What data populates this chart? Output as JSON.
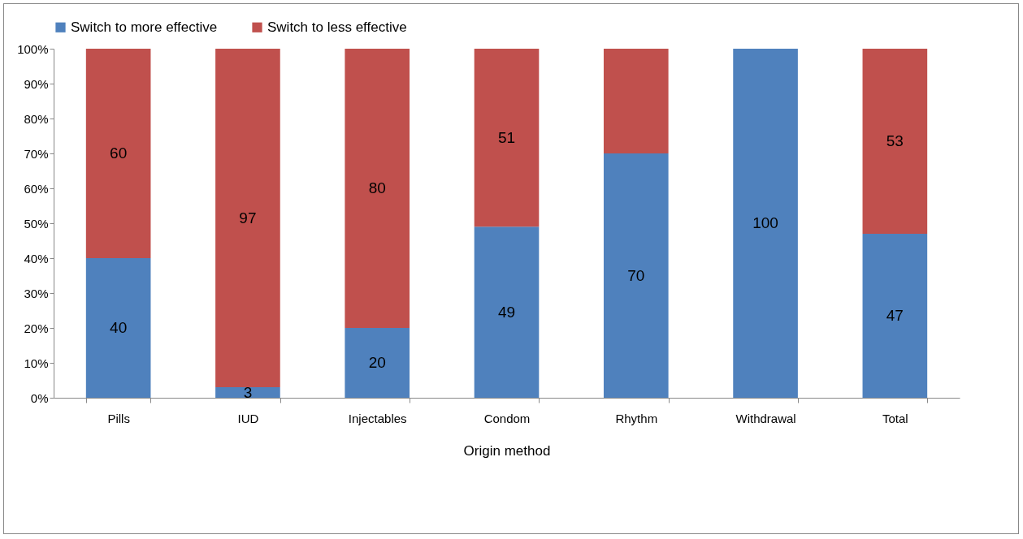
{
  "chart_data": {
    "type": "bar",
    "stacked": true,
    "xlabel": "Origin method",
    "categories": [
      "Pills",
      "IUD",
      "Injectables",
      "Condom",
      "Rhythm",
      "Withdrawal",
      "Total"
    ],
    "series": [
      {
        "name": "Switch to more effective",
        "color": "#4f81bd",
        "values": [
          40,
          3,
          20,
          49,
          70,
          100,
          47
        ],
        "value_labels": [
          "40",
          "3",
          "20",
          "49",
          "70",
          "100",
          "47"
        ]
      },
      {
        "name": "Switch to less effective",
        "color": "#c0504d",
        "values": [
          60,
          97,
          80,
          51,
          30,
          0,
          53
        ],
        "value_labels": [
          "60",
          "97",
          "80",
          "51",
          null,
          null,
          "53"
        ]
      }
    ],
    "ylim": [
      0,
      100
    ],
    "yticks": [
      {
        "value": 0,
        "label": "0%"
      },
      {
        "value": 10,
        "label": "10%"
      },
      {
        "value": 20,
        "label": "20%"
      },
      {
        "value": 30,
        "label": "30%"
      },
      {
        "value": 40,
        "label": "40%"
      },
      {
        "value": 50,
        "label": "50%"
      },
      {
        "value": 60,
        "label": "60%"
      },
      {
        "value": 70,
        "label": "70%"
      },
      {
        "value": 80,
        "label": "80%"
      },
      {
        "value": 90,
        "label": "90%"
      },
      {
        "value": 100,
        "label": "100%"
      }
    ],
    "grid": false,
    "legend": "top"
  }
}
